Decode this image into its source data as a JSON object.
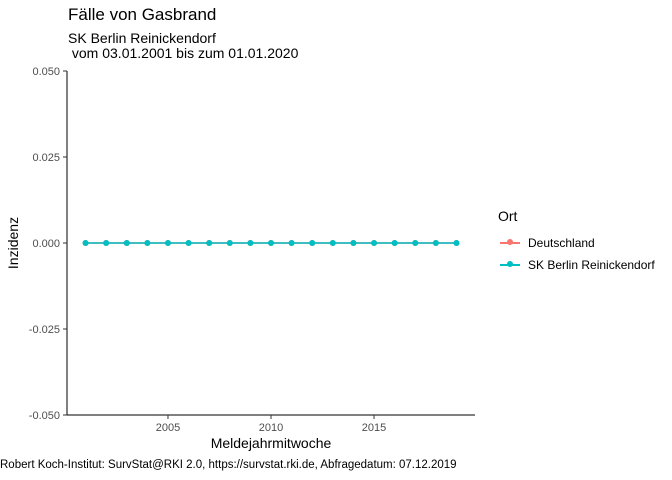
{
  "chart_data": {
    "type": "line",
    "title": "Fälle von Gasbrand",
    "subtitle": "SK Berlin Reinickendorf\n vom 03.01.2001 bis zum 01.01.2020",
    "xlabel": "Meldejahrmitwoche",
    "ylabel": "Inzidenz",
    "caption": "Robert Koch-Institut: SurvStat@RKI 2.0, https://survstat.rki.de, Abfragedatum: 07.12.2019",
    "xlim": [
      2000.1,
      2019.9
    ],
    "ylim": [
      -0.05,
      0.05
    ],
    "x_ticks": [
      2005,
      2010,
      2015
    ],
    "y_ticks": [
      -0.05,
      -0.025,
      0.0,
      0.025,
      0.05
    ],
    "y_tick_labels": [
      "-0.050",
      "-0.025",
      "0.000",
      "0.025",
      "0.050"
    ],
    "x": [
      2001,
      2002,
      2003,
      2004,
      2005,
      2006,
      2007,
      2008,
      2009,
      2010,
      2011,
      2012,
      2013,
      2014,
      2015,
      2016,
      2017,
      2018,
      2019
    ],
    "legend_title": "Ort",
    "legend_position": "right",
    "grid": false,
    "series": [
      {
        "name": "Deutschland",
        "color": "#F8766D",
        "values": [
          0,
          0,
          0,
          0,
          0,
          0,
          0,
          0,
          0,
          0,
          0,
          0,
          0,
          0,
          0,
          0,
          0,
          0,
          0
        ]
      },
      {
        "name": "SK Berlin Reinickendorf",
        "color": "#00BFC4",
        "values": [
          0,
          0,
          0,
          0,
          0,
          0,
          0,
          0,
          0,
          0,
          0,
          0,
          0,
          0,
          0,
          0,
          0,
          0,
          0
        ]
      }
    ]
  }
}
